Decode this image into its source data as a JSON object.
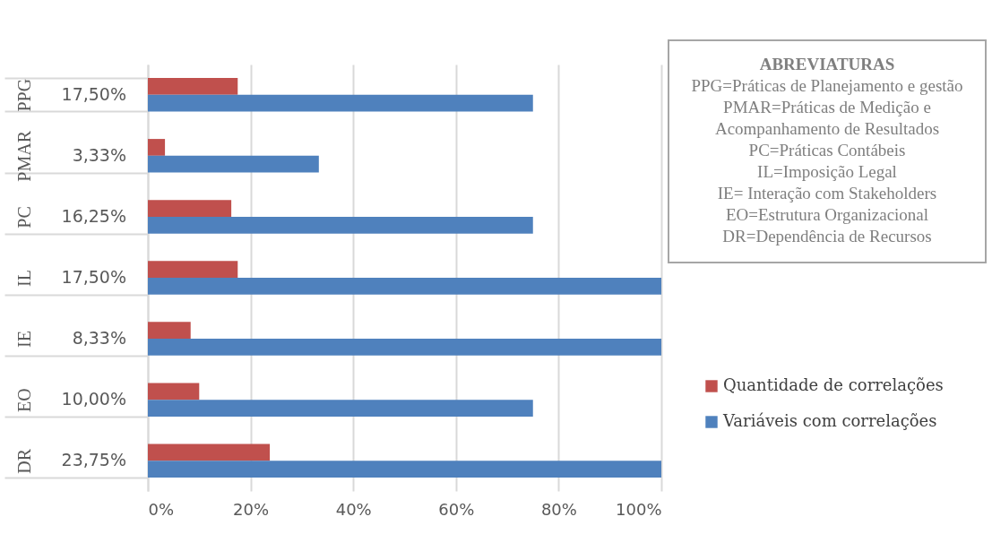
{
  "chart_data": {
    "type": "bar",
    "orientation": "horizontal",
    "categories": [
      "PPG",
      "PMAR",
      "PC",
      "IL",
      "IE",
      "EO",
      "DR"
    ],
    "series": [
      {
        "name": "Quantidade de correlações",
        "color": "#c0504d",
        "values": [
          17.5,
          3.33,
          16.25,
          17.5,
          8.33,
          10,
          23.75
        ],
        "value_labels": [
          "17,50%",
          "3,33%",
          "16,25%",
          "17,50%",
          "8,33%",
          "10,00%",
          "23,75%"
        ]
      },
      {
        "name": "Variáveis com correlações",
        "color": "#4f81bd",
        "values": [
          75,
          33.3,
          75,
          100,
          100,
          75,
          100
        ]
      }
    ],
    "xlim": [
      0,
      100
    ],
    "xticks": [
      {
        "value": 0,
        "label": "0%"
      },
      {
        "value": 20,
        "label": "20%"
      },
      {
        "value": 40,
        "label": "40%"
      },
      {
        "value": 60,
        "label": "60%"
      },
      {
        "value": 80,
        "label": "80%"
      },
      {
        "value": 100,
        "label": "100%"
      }
    ],
    "grid": "x",
    "legend": "right",
    "annotations": [
      "ABREVIATURAS",
      "PPG=Práticas de Planejamento e gestão",
      "PMAR=Práticas de Medição e Acompanhamento de Resultados",
      "PC=Práticas Contábeis",
      "IL=Imposição Legal",
      "IE= Interação com Stakeholders",
      "EO=Estrutura Organizacional",
      "DR=Dependência de Recursos"
    ]
  }
}
